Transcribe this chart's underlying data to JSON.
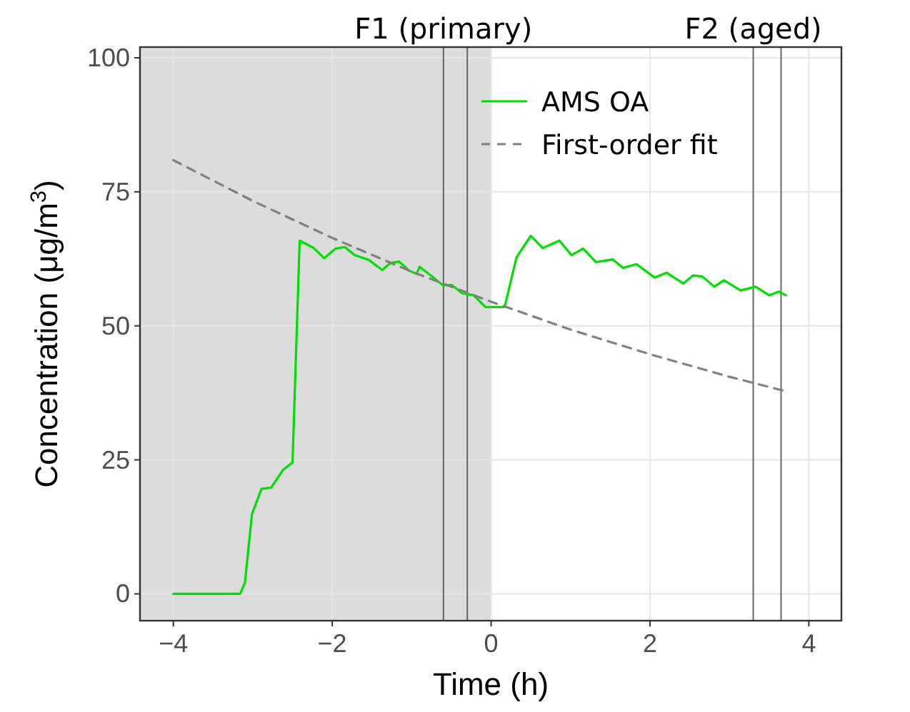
{
  "chart_data": {
    "type": "line",
    "xlabel": "Time (h)",
    "ylabel": "Concentration (μg/m$^{3}$)",
    "xlim": [
      -4.42,
      4.41
    ],
    "ylim": [
      -5,
      102
    ],
    "xticks": [
      {
        "value": -4,
        "label": "−4"
      },
      {
        "value": -2,
        "label": "−2"
      },
      0,
      2,
      4
    ],
    "yticks": [
      0,
      25,
      50,
      75,
      100
    ],
    "grid": true,
    "legend": "top right",
    "series": [
      {
        "name": "AMS OA",
        "color": "#00e000",
        "line_style": "solid",
        "x": [
          -4,
          -3.16,
          -3.1,
          -3.01,
          -2.89,
          -2.77,
          -2.62,
          -2.5,
          -2.41,
          -2.23,
          -2.1,
          -1.96,
          -1.84,
          -1.72,
          -1.54,
          -1.37,
          -1.27,
          -1.16,
          -1.03,
          -0.94,
          -0.9,
          -0.76,
          -0.61,
          -0.49,
          -0.37,
          -0.22,
          -0.07,
          0.08,
          0.17,
          0.32,
          0.5,
          0.65,
          0.86,
          1.01,
          1.16,
          1.32,
          1.53,
          1.66,
          1.83,
          2.06,
          2.21,
          2.42,
          2.54,
          2.66,
          2.81,
          2.93,
          3.14,
          3.33,
          3.5,
          3.62,
          3.71
        ],
        "values": [
          0,
          0,
          2,
          14.9,
          19.6,
          19.8,
          23.1,
          24.5,
          65.9,
          64.5,
          62.6,
          64.4,
          64.7,
          63.2,
          62.3,
          60.4,
          61.7,
          62,
          60.3,
          59.7,
          61,
          59.4,
          57.6,
          57.6,
          56.1,
          55.7,
          53.5,
          53.5,
          53.5,
          62.8,
          66.8,
          64.5,
          65.9,
          63.2,
          64.4,
          61.9,
          62.4,
          60.8,
          61.5,
          59,
          59.9,
          57.9,
          59.4,
          59.2,
          57.3,
          58.5,
          56.6,
          57.3,
          55.7,
          56.4,
          55.7
        ]
      },
      {
        "name": "First-order fit",
        "color": "#808080",
        "line_style": "dashed",
        "x": [
          -4,
          -3,
          -2,
          -1,
          0,
          1,
          2,
          3,
          3.71
        ],
        "values": [
          80.9,
          73.3,
          66.4,
          60.1,
          54.5,
          49.3,
          44.7,
          40.5,
          37.8
        ]
      }
    ],
    "bands": [
      {
        "axis": "x",
        "from": -4.42,
        "to": 0,
        "color": "#dcdcdc"
      }
    ],
    "ref_lines": [
      {
        "axis": "x",
        "value": -0.6,
        "label": "F1 (primary)",
        "color": "#666666"
      },
      {
        "axis": "x",
        "value": -0.3,
        "color": "#666666"
      },
      {
        "axis": "x",
        "value": 3.3,
        "label": "F2 (aged)",
        "color": "#666666"
      },
      {
        "axis": "x",
        "value": 3.65,
        "color": "#666666"
      }
    ]
  }
}
